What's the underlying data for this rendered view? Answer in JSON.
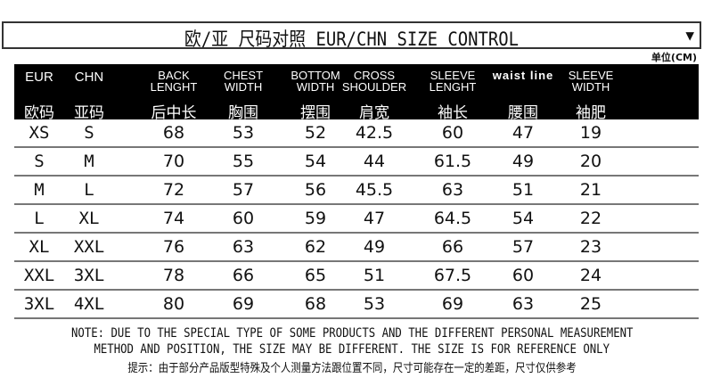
{
  "title": "欧/亚 尺码对照 EUR/CHN SIZE CONTROL",
  "dropdown_icon": "triangle-down-icon",
  "unit": "单位(CM)",
  "columns": [
    {
      "en": "EUR",
      "zh": "欧码"
    },
    {
      "en": "CHN",
      "zh": "亚码"
    },
    {
      "en": "BACK LENGHT",
      "zh": "后中长"
    },
    {
      "en": "CHEST WIDTH",
      "zh": "胸围"
    },
    {
      "en": "BOTTOM WIDTH",
      "zh": "摆围"
    },
    {
      "en": "CROSS SHOULDER",
      "zh": "肩宽"
    },
    {
      "en": "SLEEVE LENGHT",
      "zh": "袖长"
    },
    {
      "en": "waist line",
      "zh": "腰围"
    },
    {
      "en": "SLEEVE WIDTH",
      "zh": "袖肥"
    }
  ],
  "rows": [
    [
      "XS",
      "S",
      "68",
      "53",
      "52",
      "42.5",
      "60",
      "47",
      "19"
    ],
    [
      "S",
      "M",
      "70",
      "55",
      "54",
      "44",
      "61.5",
      "49",
      "20"
    ],
    [
      "M",
      "L",
      "72",
      "57",
      "56",
      "45.5",
      "63",
      "51",
      "21"
    ],
    [
      "L",
      "XL",
      "74",
      "60",
      "59",
      "47",
      "64.5",
      "54",
      "22"
    ],
    [
      "XL",
      "XXL",
      "76",
      "63",
      "62",
      "49",
      "66",
      "57",
      "23"
    ],
    [
      "XXL",
      "3XL",
      "78",
      "66",
      "65",
      "51",
      "67.5",
      "60",
      "24"
    ],
    [
      "3XL",
      "4XL",
      "80",
      "69",
      "68",
      "53",
      "69",
      "63",
      "25"
    ]
  ],
  "note": {
    "line1": "NOTE: DUE TO THE SPECIAL TYPE OF SOME PRODUCTS AND THE DIFFERENT PERSONAL MEASUREMENT",
    "line2": "METHOD AND POSITION, THE SIZE MAY BE DIFFERENT. THE SIZE IS FOR REFERENCE ONLY",
    "line3": "提示：由于部分产品版型特殊及个人测量方法跟位置不同，尺寸可能存在一定的差距，尺寸仅供参考"
  }
}
